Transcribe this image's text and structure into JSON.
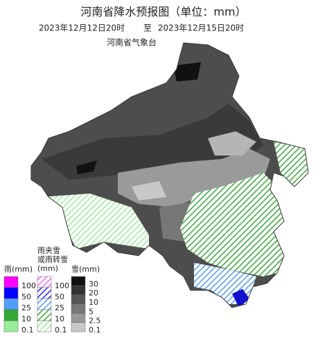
{
  "header": {
    "title": "河南省降水预报图（单位：mm）",
    "time_from": "2023年12月12日20时",
    "time_sep": "至",
    "time_to": "2023年12月15日20时",
    "agency": "河南省气象台"
  },
  "legend": {
    "rain": {
      "title": "雨(mm)",
      "labels": [
        100,
        50,
        25,
        10,
        0.1
      ]
    },
    "mixed": {
      "title_lines": [
        "雨夹雪",
        "或雨转雪",
        "(mm)"
      ],
      "labels": [
        100,
        50,
        25,
        10,
        0.1
      ]
    },
    "snow": {
      "title": "雪(mm)",
      "labels": [
        30,
        20,
        10,
        5,
        2.5,
        0.1
      ]
    }
  }
}
